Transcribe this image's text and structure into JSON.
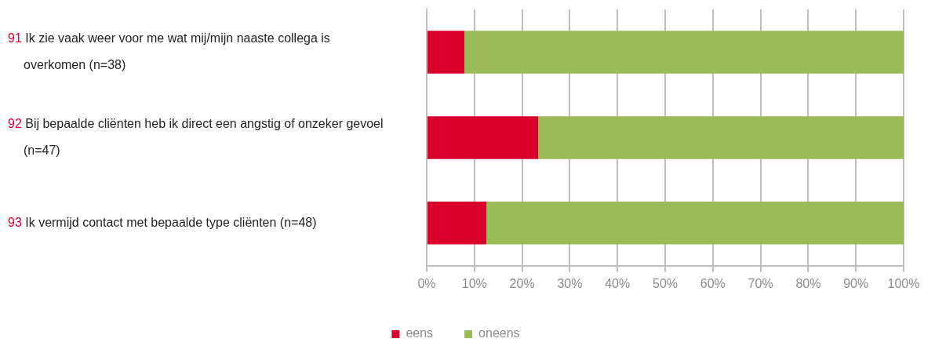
{
  "chart_data": {
    "type": "bar",
    "orientation": "horizontal",
    "stacked": true,
    "categories": [
      "91 Ik zie vaak weer voor me wat mij/mijn naaste collega is overkomen (n=38)",
      "92 Bij bepaalde cliënten heb ik direct een angstig of onzeker gevoel (n=47)",
      "93 Ik vermijd contact met bepaalde type cliënten (n=48)"
    ],
    "series": [
      {
        "name": "eens",
        "color": "#d9002b",
        "values": [
          7.9,
          23.4,
          12.5
        ]
      },
      {
        "name": "oneens",
        "color": "#9bbb59",
        "values": [
          92.1,
          76.6,
          87.5
        ]
      }
    ],
    "xlim": [
      0,
      100
    ],
    "xticks": [
      {
        "value": 0,
        "label": "0%"
      },
      {
        "value": 10,
        "label": "10%"
      },
      {
        "value": 20,
        "label": "20%"
      },
      {
        "value": 30,
        "label": "30%"
      },
      {
        "value": 40,
        "label": "40%"
      },
      {
        "value": 50,
        "label": "50%"
      },
      {
        "value": 60,
        "label": "60%"
      },
      {
        "value": 70,
        "label": "70%"
      },
      {
        "value": 80,
        "label": "80%"
      },
      {
        "value": 90,
        "label": "90%"
      },
      {
        "value": 100,
        "label": "100%"
      }
    ],
    "grid": "x",
    "legend": "bottom"
  }
}
